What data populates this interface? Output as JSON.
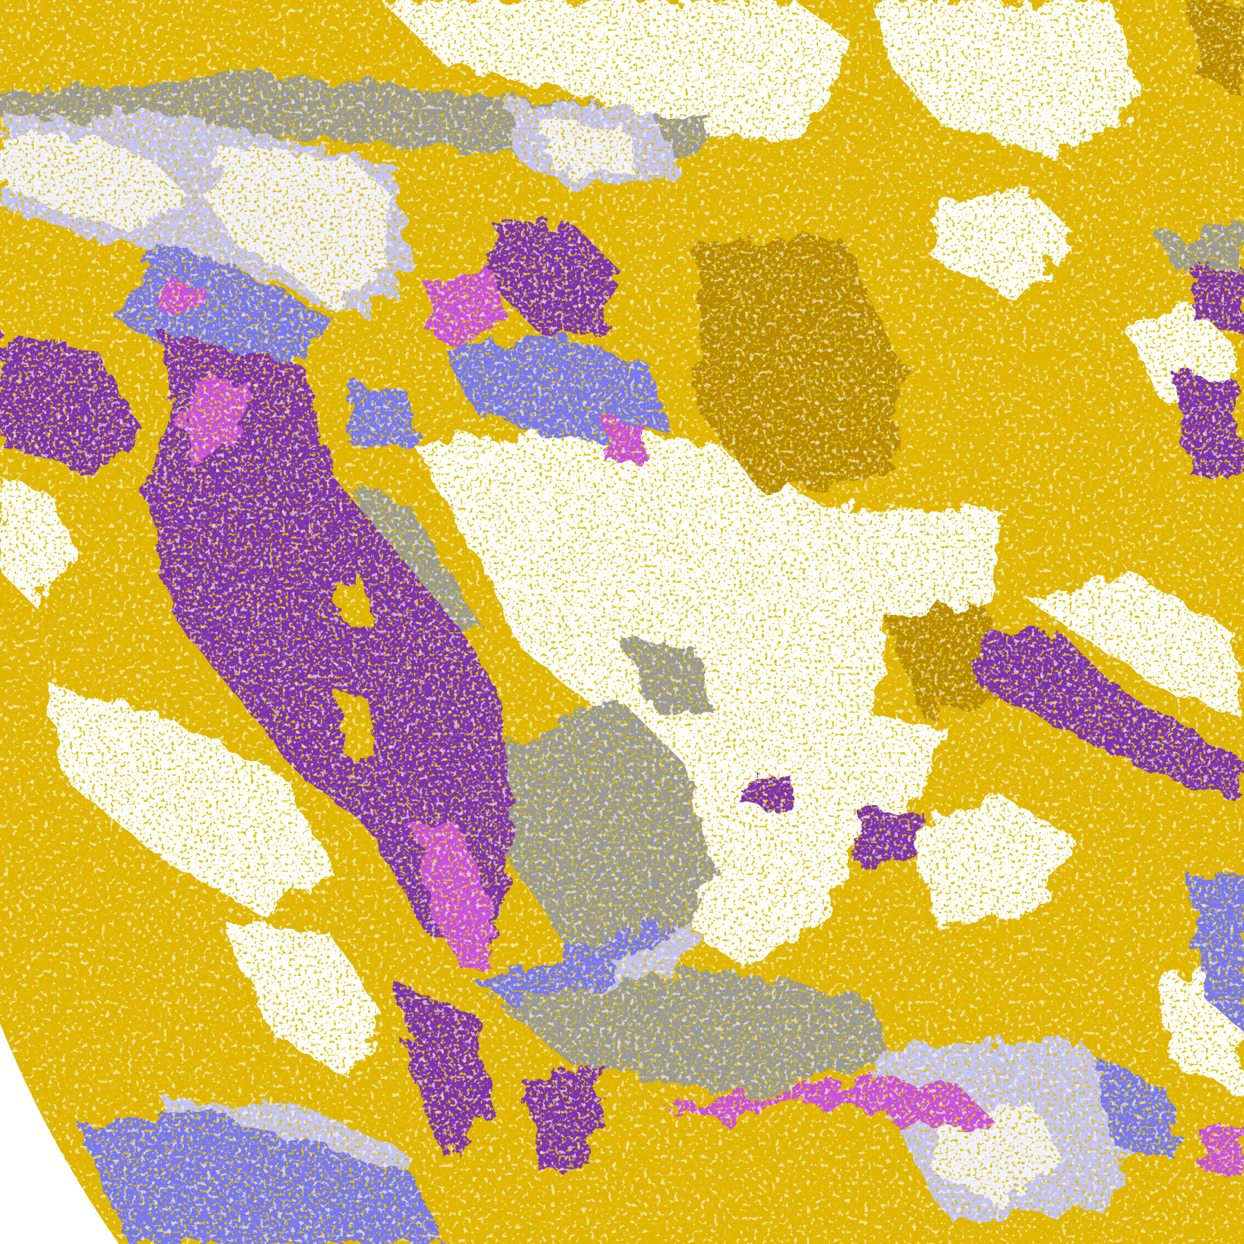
{
  "map": {
    "kind": "satellite cloud classification composite",
    "class_colors": {
      "clear": "#ffffff",
      "low_cloud": "#e0b400",
      "low_cloud_dark": "#b88a00",
      "mid_cloud": "#999999",
      "high_thin": "#c4c4f8",
      "high_thick": "#f0f0ff",
      "cirrus": "#7878f0",
      "deep_convective": "#c850e0",
      "stratocumulus_ocean": "#7e30b0"
    }
  }
}
